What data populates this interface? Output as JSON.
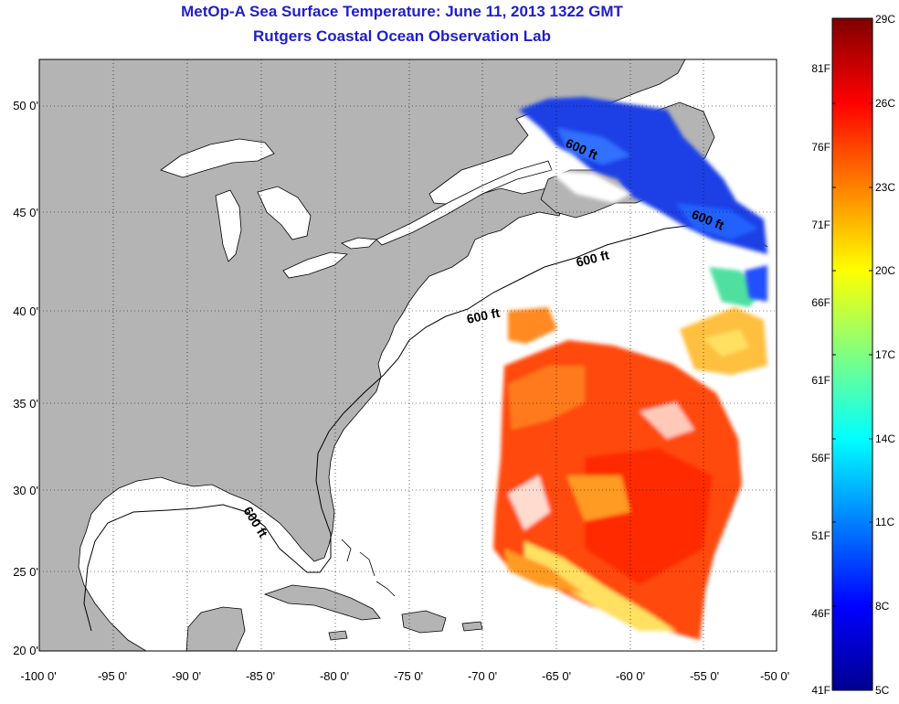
{
  "title": "MetOp-A Sea Surface Temperature:  June 11, 2013 1322 GMT",
  "subtitle": "Rutgers Coastal Ocean Observation Lab",
  "map": {
    "lon_ticks": [
      "-100 0'",
      "-95 0'",
      "-90 0'",
      "-85 0'",
      "-80 0'",
      "-75 0'",
      "-70 0'",
      "-65 0'",
      "-60 0'",
      "-55 0'",
      "-50 0'"
    ],
    "lat_ticks": [
      "50 0'",
      "45 0'",
      "40 0'",
      "35 0'",
      "30 0'",
      "25 0'",
      "20 0'"
    ],
    "lon_range": [
      -100,
      -50
    ],
    "lat_range": [
      20,
      52
    ],
    "contour_labels": [
      "600 ft",
      "600 ft",
      "600 ft",
      "600 ft",
      "600 ft"
    ]
  },
  "colorbar": {
    "celsius": [
      "29C",
      "26C",
      "23C",
      "20C",
      "17C",
      "14C",
      "11C",
      "8C",
      "5C"
    ],
    "fahrenheit": [
      "81F",
      "76F",
      "71F",
      "66F",
      "61F",
      "56F",
      "51F",
      "46F",
      "41F"
    ],
    "colors": [
      "#00008f",
      "#0000ff",
      "#0080ff",
      "#00ffff",
      "#80ff80",
      "#ffff00",
      "#ff8000",
      "#ff0000",
      "#800000"
    ]
  },
  "colors": {
    "land": "#b4b4b4",
    "ocean": "#ffffff",
    "title": "#1f1fc8"
  }
}
